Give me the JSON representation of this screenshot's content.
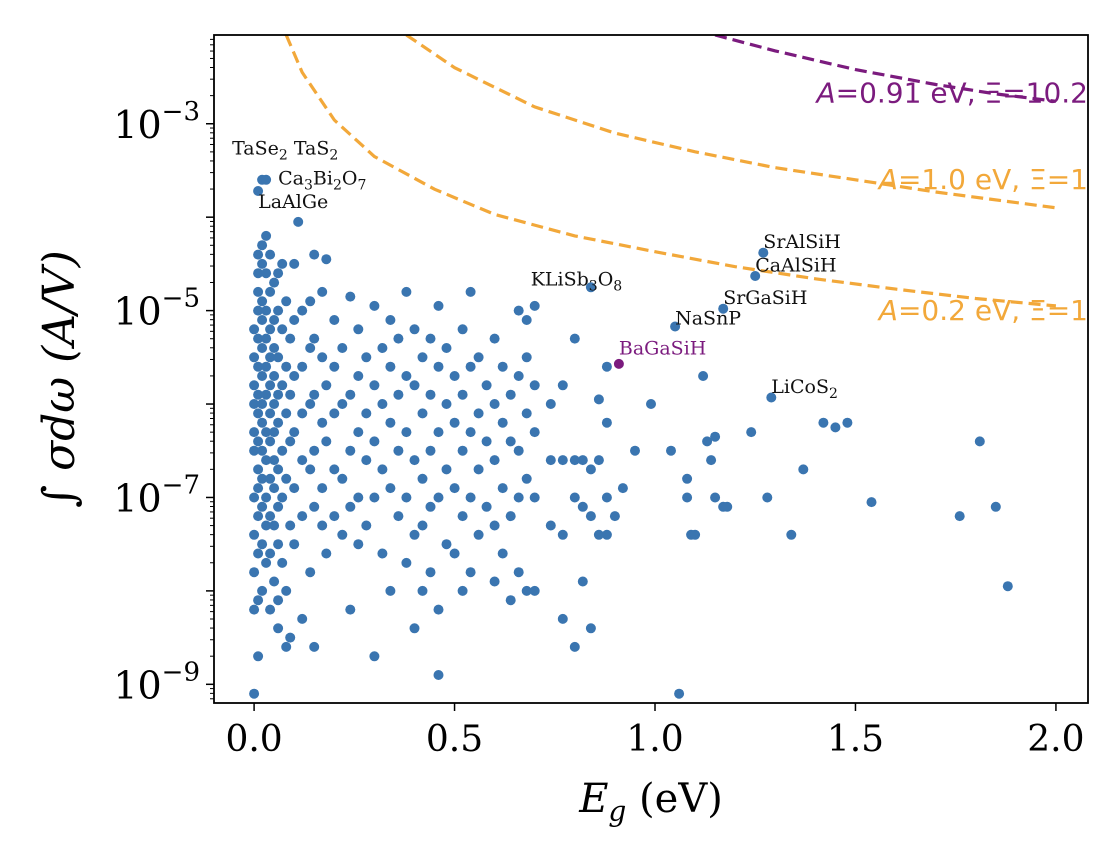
{
  "chart_data": {
    "type": "scatter",
    "title": "",
    "xlabel": {
      "symbol": "E",
      "sub": "g",
      "unit": "(eV)"
    },
    "ylabel": {
      "text": "∫ σdω (A/V)"
    },
    "xlim": [
      -0.1,
      2.08
    ],
    "ylim_log10": [
      -9.2,
      -2.05
    ],
    "xticks": [
      0.0,
      0.5,
      1.0,
      1.5,
      2.0
    ],
    "xtick_labels": [
      "0.0",
      "0.5",
      "1.0",
      "1.5",
      "2.0"
    ],
    "yticks_log10": [
      -9,
      -7,
      -5,
      -3
    ],
    "ytick_labels": [
      {
        "base": "10",
        "exp": "−9"
      },
      {
        "base": "10",
        "exp": "−7"
      },
      {
        "base": "10",
        "exp": "−5"
      },
      {
        "base": "10",
        "exp": "−3"
      }
    ],
    "grid": false,
    "colors": {
      "points": "#3a75b0",
      "highlight": "#7b1b7e",
      "orange_curve": "#f2a83a",
      "purple_curve": "#7b1b7e"
    },
    "curves": [
      {
        "name": "purple",
        "label_pre": "A",
        "label_post": "=0.91 eV, Ξ=10.2",
        "color": "#7b1b7e",
        "points_log10": [
          [
            1.15,
            -2.05
          ],
          [
            1.3,
            -2.22
          ],
          [
            1.5,
            -2.42
          ],
          [
            1.7,
            -2.58
          ],
          [
            1.85,
            -2.68
          ],
          [
            2.0,
            -2.76
          ]
        ]
      },
      {
        "name": "orange-1.0",
        "label_pre": "A",
        "label_post": "=1.0 eV, Ξ=1",
        "color": "#f2a83a",
        "points_log10": [
          [
            0.38,
            -2.05
          ],
          [
            0.5,
            -2.4
          ],
          [
            0.7,
            -2.82
          ],
          [
            0.9,
            -3.1
          ],
          [
            1.1,
            -3.3
          ],
          [
            1.3,
            -3.47
          ],
          [
            1.5,
            -3.6
          ],
          [
            1.7,
            -3.73
          ],
          [
            2.0,
            -3.9
          ]
        ]
      },
      {
        "name": "orange-0.2",
        "label_pre": "A",
        "label_post": "=0.2 eV, Ξ=1",
        "color": "#f2a83a",
        "points_log10": [
          [
            0.08,
            -2.05
          ],
          [
            0.12,
            -2.45
          ],
          [
            0.2,
            -2.96
          ],
          [
            0.3,
            -3.35
          ],
          [
            0.45,
            -3.7
          ],
          [
            0.6,
            -3.97
          ],
          [
            0.8,
            -4.2
          ],
          [
            1.0,
            -4.37
          ],
          [
            1.2,
            -4.53
          ],
          [
            1.4,
            -4.66
          ],
          [
            1.6,
            -4.77
          ],
          [
            1.8,
            -4.87
          ],
          [
            2.0,
            -4.95
          ]
        ]
      }
    ],
    "curve_label_positions": [
      {
        "x": 2.08,
        "y_log10": -2.77,
        "anchor": "end"
      },
      {
        "x": 2.08,
        "y_log10": -3.7,
        "anchor": "end"
      },
      {
        "x": 2.08,
        "y_log10": -5.1,
        "anchor": "end"
      }
    ],
    "labeled_points": [
      {
        "x": 0.01,
        "y_log10": -3.72
      },
      {
        "x": 0.02,
        "y_log10": -3.6
      },
      {
        "x": 0.03,
        "y_log10": -3.6
      },
      {
        "x": 0.11,
        "y_log10": -4.05
      },
      {
        "x": 0.84,
        "y_log10": -4.75
      },
      {
        "x": 1.27,
        "y_log10": -4.38
      },
      {
        "x": 1.25,
        "y_log10": -4.63
      },
      {
        "x": 1.17,
        "y_log10": -4.98
      },
      {
        "x": 1.05,
        "y_log10": -5.17
      },
      {
        "x": 0.91,
        "y_log10": -5.57,
        "highlight": true
      },
      {
        "x": 1.29,
        "y_log10": -5.93
      }
    ],
    "annotations": [
      {
        "x": 0.21,
        "y_log10": -3.33,
        "text": "TaSe",
        "sub": "2",
        "tail": " TaS",
        "sub2": "2",
        "anchor": "end"
      },
      {
        "x": 0.06,
        "y_log10": -3.65,
        "text": "Ca",
        "sub": "3",
        "tail": "Bi",
        "sub2": "2",
        "tail2": "O",
        "sub3": "7",
        "anchor": "start"
      },
      {
        "x": 0.01,
        "y_log10": -3.9,
        "text": "LaAlGe",
        "anchor": "start"
      },
      {
        "x": 0.69,
        "y_log10": -4.73,
        "text": "KLiSb",
        "sub": "3",
        "tail": "O",
        "sub2": "8",
        "anchor": "start"
      },
      {
        "x": 1.27,
        "y_log10": -4.33,
        "text": "SrAlSiH",
        "anchor": "start"
      },
      {
        "x": 1.25,
        "y_log10": -4.58,
        "text": "CaAlSiH",
        "anchor": "start"
      },
      {
        "x": 1.17,
        "y_log10": -4.93,
        "text": "SrGaSiH",
        "anchor": "start"
      },
      {
        "x": 1.05,
        "y_log10": -5.15,
        "text": "NaSnP",
        "anchor": "start"
      },
      {
        "x": 0.91,
        "y_log10": -5.47,
        "text": "BaGaSiH",
        "anchor": "start",
        "highlight": true
      },
      {
        "x": 1.29,
        "y_log10": -5.88,
        "text": "LiCoS",
        "sub": "2",
        "anchor": "start"
      }
    ],
    "points": [
      [
        0.0,
        -9.1
      ],
      [
        0.0,
        -5.2
      ],
      [
        0.0,
        -5.5
      ],
      [
        0.0,
        -5.8
      ],
      [
        0.0,
        -6.0
      ],
      [
        0.0,
        -6.3
      ],
      [
        0.0,
        -6.5
      ],
      [
        0.0,
        -7.0
      ],
      [
        0.0,
        -7.4
      ],
      [
        0.0,
        -7.8
      ],
      [
        0.0,
        -8.2
      ],
      [
        0.01,
        -4.4
      ],
      [
        0.01,
        -4.6
      ],
      [
        0.01,
        -4.8
      ],
      [
        0.01,
        -5.0
      ],
      [
        0.01,
        -5.3
      ],
      [
        0.01,
        -5.6
      ],
      [
        0.01,
        -5.9
      ],
      [
        0.01,
        -6.1
      ],
      [
        0.01,
        -6.4
      ],
      [
        0.01,
        -6.7
      ],
      [
        0.01,
        -6.9
      ],
      [
        0.01,
        -7.2
      ],
      [
        0.01,
        -7.6
      ],
      [
        0.01,
        -8.1
      ],
      [
        0.01,
        -8.7
      ],
      [
        0.02,
        -4.3
      ],
      [
        0.02,
        -4.5
      ],
      [
        0.02,
        -4.9
      ],
      [
        0.02,
        -5.1
      ],
      [
        0.02,
        -5.4
      ],
      [
        0.02,
        -5.7
      ],
      [
        0.02,
        -6.0
      ],
      [
        0.02,
        -6.2
      ],
      [
        0.02,
        -6.5
      ],
      [
        0.02,
        -6.8
      ],
      [
        0.02,
        -7.1
      ],
      [
        0.02,
        -7.5
      ],
      [
        0.02,
        -8.0
      ],
      [
        0.03,
        -4.2
      ],
      [
        0.03,
        -4.6
      ],
      [
        0.03,
        -5.0
      ],
      [
        0.03,
        -5.3
      ],
      [
        0.03,
        -5.6
      ],
      [
        0.03,
        -5.9
      ],
      [
        0.03,
        -6.3
      ],
      [
        0.03,
        -6.6
      ],
      [
        0.03,
        -7.0
      ],
      [
        0.03,
        -7.3
      ],
      [
        0.03,
        -7.7
      ],
      [
        0.04,
        -4.4
      ],
      [
        0.04,
        -4.8
      ],
      [
        0.04,
        -5.2
      ],
      [
        0.04,
        -5.5
      ],
      [
        0.04,
        -5.8
      ],
      [
        0.04,
        -6.1
      ],
      [
        0.04,
        -6.4
      ],
      [
        0.04,
        -6.8
      ],
      [
        0.04,
        -7.2
      ],
      [
        0.04,
        -7.6
      ],
      [
        0.04,
        -8.2
      ],
      [
        0.05,
        -4.7
      ],
      [
        0.05,
        -5.1
      ],
      [
        0.05,
        -5.4
      ],
      [
        0.05,
        -5.7
      ],
      [
        0.05,
        -6.0
      ],
      [
        0.05,
        -6.3
      ],
      [
        0.05,
        -6.6
      ],
      [
        0.05,
        -6.9
      ],
      [
        0.05,
        -7.3
      ],
      [
        0.05,
        -7.9
      ],
      [
        0.06,
        -4.6
      ],
      [
        0.06,
        -5.0
      ],
      [
        0.06,
        -5.5
      ],
      [
        0.06,
        -5.9
      ],
      [
        0.06,
        -6.2
      ],
      [
        0.06,
        -6.7
      ],
      [
        0.06,
        -7.1
      ],
      [
        0.06,
        -7.5
      ],
      [
        0.06,
        -8.1
      ],
      [
        0.06,
        -8.4
      ],
      [
        0.07,
        -4.5
      ],
      [
        0.07,
        -5.2
      ],
      [
        0.07,
        -5.8
      ],
      [
        0.07,
        -6.5
      ],
      [
        0.07,
        -7.0
      ],
      [
        0.07,
        -7.7
      ],
      [
        0.08,
        -4.9
      ],
      [
        0.08,
        -5.6
      ],
      [
        0.08,
        -6.1
      ],
      [
        0.08,
        -6.8
      ],
      [
        0.08,
        -8.0
      ],
      [
        0.08,
        -8.6
      ],
      [
        0.09,
        -5.3
      ],
      [
        0.09,
        -5.9
      ],
      [
        0.09,
        -6.4
      ],
      [
        0.09,
        -7.3
      ],
      [
        0.09,
        -8.5
      ],
      [
        0.1,
        -4.5
      ],
      [
        0.1,
        -5.1
      ],
      [
        0.1,
        -5.7
      ],
      [
        0.1,
        -6.3
      ],
      [
        0.1,
        -6.9
      ],
      [
        0.1,
        -7.5
      ],
      [
        0.12,
        -5.0
      ],
      [
        0.12,
        -5.6
      ],
      [
        0.12,
        -6.1
      ],
      [
        0.12,
        -6.6
      ],
      [
        0.12,
        -7.2
      ],
      [
        0.12,
        -8.3
      ],
      [
        0.14,
        -4.9
      ],
      [
        0.14,
        -5.4
      ],
      [
        0.14,
        -6.0
      ],
      [
        0.14,
        -6.7
      ],
      [
        0.14,
        -7.8
      ],
      [
        0.15,
        -4.4
      ],
      [
        0.15,
        -5.3
      ],
      [
        0.15,
        -5.9
      ],
      [
        0.15,
        -6.5
      ],
      [
        0.15,
        -7.1
      ],
      [
        0.15,
        -8.6
      ],
      [
        0.17,
        -4.8
      ],
      [
        0.17,
        -5.5
      ],
      [
        0.17,
        -6.2
      ],
      [
        0.17,
        -6.9
      ],
      [
        0.17,
        -7.3
      ],
      [
        0.18,
        -4.45
      ],
      [
        0.18,
        -5.8
      ],
      [
        0.18,
        -6.4
      ],
      [
        0.18,
        -7.6
      ],
      [
        0.2,
        -5.1
      ],
      [
        0.2,
        -5.6
      ],
      [
        0.2,
        -6.1
      ],
      [
        0.2,
        -6.7
      ],
      [
        0.2,
        -7.2
      ],
      [
        0.22,
        -5.4
      ],
      [
        0.22,
        -6.0
      ],
      [
        0.22,
        -6.8
      ],
      [
        0.22,
        -7.4
      ],
      [
        0.24,
        -4.85
      ],
      [
        0.24,
        -5.9
      ],
      [
        0.24,
        -6.5
      ],
      [
        0.24,
        -7.1
      ],
      [
        0.24,
        -8.2
      ],
      [
        0.26,
        -5.2
      ],
      [
        0.26,
        -5.7
      ],
      [
        0.26,
        -6.3
      ],
      [
        0.26,
        -7.0
      ],
      [
        0.26,
        -7.5
      ],
      [
        0.28,
        -5.5
      ],
      [
        0.28,
        -6.1
      ],
      [
        0.28,
        -6.6
      ],
      [
        0.28,
        -7.3
      ],
      [
        0.3,
        -4.95
      ],
      [
        0.3,
        -5.8
      ],
      [
        0.3,
        -6.4
      ],
      [
        0.3,
        -7.0
      ],
      [
        0.3,
        -8.7
      ],
      [
        0.32,
        -5.4
      ],
      [
        0.32,
        -6.0
      ],
      [
        0.32,
        -6.7
      ],
      [
        0.32,
        -7.6
      ],
      [
        0.34,
        -5.1
      ],
      [
        0.34,
        -5.6
      ],
      [
        0.34,
        -6.2
      ],
      [
        0.34,
        -6.9
      ],
      [
        0.34,
        -8.0
      ],
      [
        0.36,
        -5.3
      ],
      [
        0.36,
        -5.9
      ],
      [
        0.36,
        -6.5
      ],
      [
        0.36,
        -7.2
      ],
      [
        0.38,
        -4.8
      ],
      [
        0.38,
        -5.7
      ],
      [
        0.38,
        -6.3
      ],
      [
        0.38,
        -7.0
      ],
      [
        0.38,
        -7.7
      ],
      [
        0.4,
        -5.2
      ],
      [
        0.4,
        -5.8
      ],
      [
        0.4,
        -6.6
      ],
      [
        0.4,
        -7.4
      ],
      [
        0.4,
        -8.4
      ],
      [
        0.42,
        -5.5
      ],
      [
        0.42,
        -6.1
      ],
      [
        0.42,
        -6.8
      ],
      [
        0.42,
        -7.3
      ],
      [
        0.42,
        -8.0
      ],
      [
        0.44,
        -5.3
      ],
      [
        0.44,
        -5.9
      ],
      [
        0.44,
        -6.5
      ],
      [
        0.44,
        -7.1
      ],
      [
        0.44,
        -7.8
      ],
      [
        0.46,
        -4.95
      ],
      [
        0.46,
        -5.6
      ],
      [
        0.46,
        -6.3
      ],
      [
        0.46,
        -7.0
      ],
      [
        0.46,
        -8.2
      ],
      [
        0.46,
        -8.9
      ],
      [
        0.48,
        -5.4
      ],
      [
        0.48,
        -6.0
      ],
      [
        0.48,
        -6.7
      ],
      [
        0.48,
        -7.5
      ],
      [
        0.5,
        -5.7
      ],
      [
        0.5,
        -6.2
      ],
      [
        0.5,
        -6.9
      ],
      [
        0.5,
        -7.6
      ],
      [
        0.52,
        -5.2
      ],
      [
        0.52,
        -5.9
      ],
      [
        0.52,
        -6.5
      ],
      [
        0.52,
        -7.2
      ],
      [
        0.52,
        -8.0
      ],
      [
        0.54,
        -4.8
      ],
      [
        0.54,
        -5.6
      ],
      [
        0.54,
        -6.3
      ],
      [
        0.54,
        -7.0
      ],
      [
        0.54,
        -7.8
      ],
      [
        0.56,
        -5.5
      ],
      [
        0.56,
        -6.1
      ],
      [
        0.56,
        -6.7
      ],
      [
        0.56,
        -7.4
      ],
      [
        0.58,
        -5.8
      ],
      [
        0.58,
        -6.4
      ],
      [
        0.58,
        -7.1
      ],
      [
        0.6,
        -5.3
      ],
      [
        0.6,
        -6.0
      ],
      [
        0.6,
        -6.6
      ],
      [
        0.6,
        -7.3
      ],
      [
        0.6,
        -7.9
      ],
      [
        0.62,
        -5.6
      ],
      [
        0.62,
        -6.2
      ],
      [
        0.62,
        -6.9
      ],
      [
        0.62,
        -7.6
      ],
      [
        0.64,
        -5.9
      ],
      [
        0.64,
        -6.4
      ],
      [
        0.64,
        -7.2
      ],
      [
        0.64,
        -8.1
      ],
      [
        0.66,
        -5.0
      ],
      [
        0.66,
        -5.7
      ],
      [
        0.66,
        -6.5
      ],
      [
        0.66,
        -7.0
      ],
      [
        0.66,
        -7.8
      ],
      [
        0.68,
        -5.1
      ],
      [
        0.68,
        -5.5
      ],
      [
        0.68,
        -6.1
      ],
      [
        0.68,
        -6.8
      ],
      [
        0.68,
        -8.0
      ],
      [
        0.7,
        -4.95
      ],
      [
        0.7,
        -5.8
      ],
      [
        0.7,
        -6.3
      ],
      [
        0.7,
        -7.0
      ],
      [
        0.7,
        -8.0
      ],
      [
        0.74,
        -6.0
      ],
      [
        0.74,
        -6.6
      ],
      [
        0.74,
        -7.3
      ],
      [
        0.77,
        -5.8
      ],
      [
        0.77,
        -6.6
      ],
      [
        0.77,
        -7.4
      ],
      [
        0.77,
        -8.3
      ],
      [
        0.8,
        -5.3
      ],
      [
        0.8,
        -6.6
      ],
      [
        0.8,
        -7.0
      ],
      [
        0.8,
        -8.6
      ],
      [
        0.82,
        -6.6
      ],
      [
        0.82,
        -7.1
      ],
      [
        0.82,
        -7.9
      ],
      [
        0.84,
        -6.7
      ],
      [
        0.84,
        -7.2
      ],
      [
        0.84,
        -8.4
      ],
      [
        0.86,
        -5.95
      ],
      [
        0.86,
        -6.6
      ],
      [
        0.86,
        -7.4
      ],
      [
        0.88,
        -5.6
      ],
      [
        0.88,
        -6.2
      ],
      [
        0.88,
        -7.0
      ],
      [
        0.88,
        -7.4
      ],
      [
        0.9,
        -7.2
      ],
      [
        0.92,
        -6.9
      ],
      [
        0.95,
        -6.5
      ],
      [
        0.99,
        -6.0
      ],
      [
        1.04,
        -6.5
      ],
      [
        1.06,
        -9.1
      ],
      [
        1.08,
        -6.8
      ],
      [
        1.08,
        -7.0
      ],
      [
        1.09,
        -7.4
      ],
      [
        1.1,
        -7.4
      ],
      [
        1.12,
        -5.7
      ],
      [
        1.13,
        -6.4
      ],
      [
        1.14,
        -6.6
      ],
      [
        1.15,
        -7.0
      ],
      [
        1.15,
        -6.35
      ],
      [
        1.17,
        -7.1
      ],
      [
        1.18,
        -7.1
      ],
      [
        1.24,
        -6.3
      ],
      [
        1.28,
        -7.0
      ],
      [
        1.34,
        -7.4
      ],
      [
        1.37,
        -6.7
      ],
      [
        1.42,
        -6.2
      ],
      [
        1.45,
        -6.25
      ],
      [
        1.48,
        -6.2
      ],
      [
        1.54,
        -7.05
      ],
      [
        1.76,
        -7.2
      ],
      [
        1.81,
        -6.4
      ],
      [
        1.85,
        -7.1
      ],
      [
        1.88,
        -7.95
      ]
    ]
  }
}
